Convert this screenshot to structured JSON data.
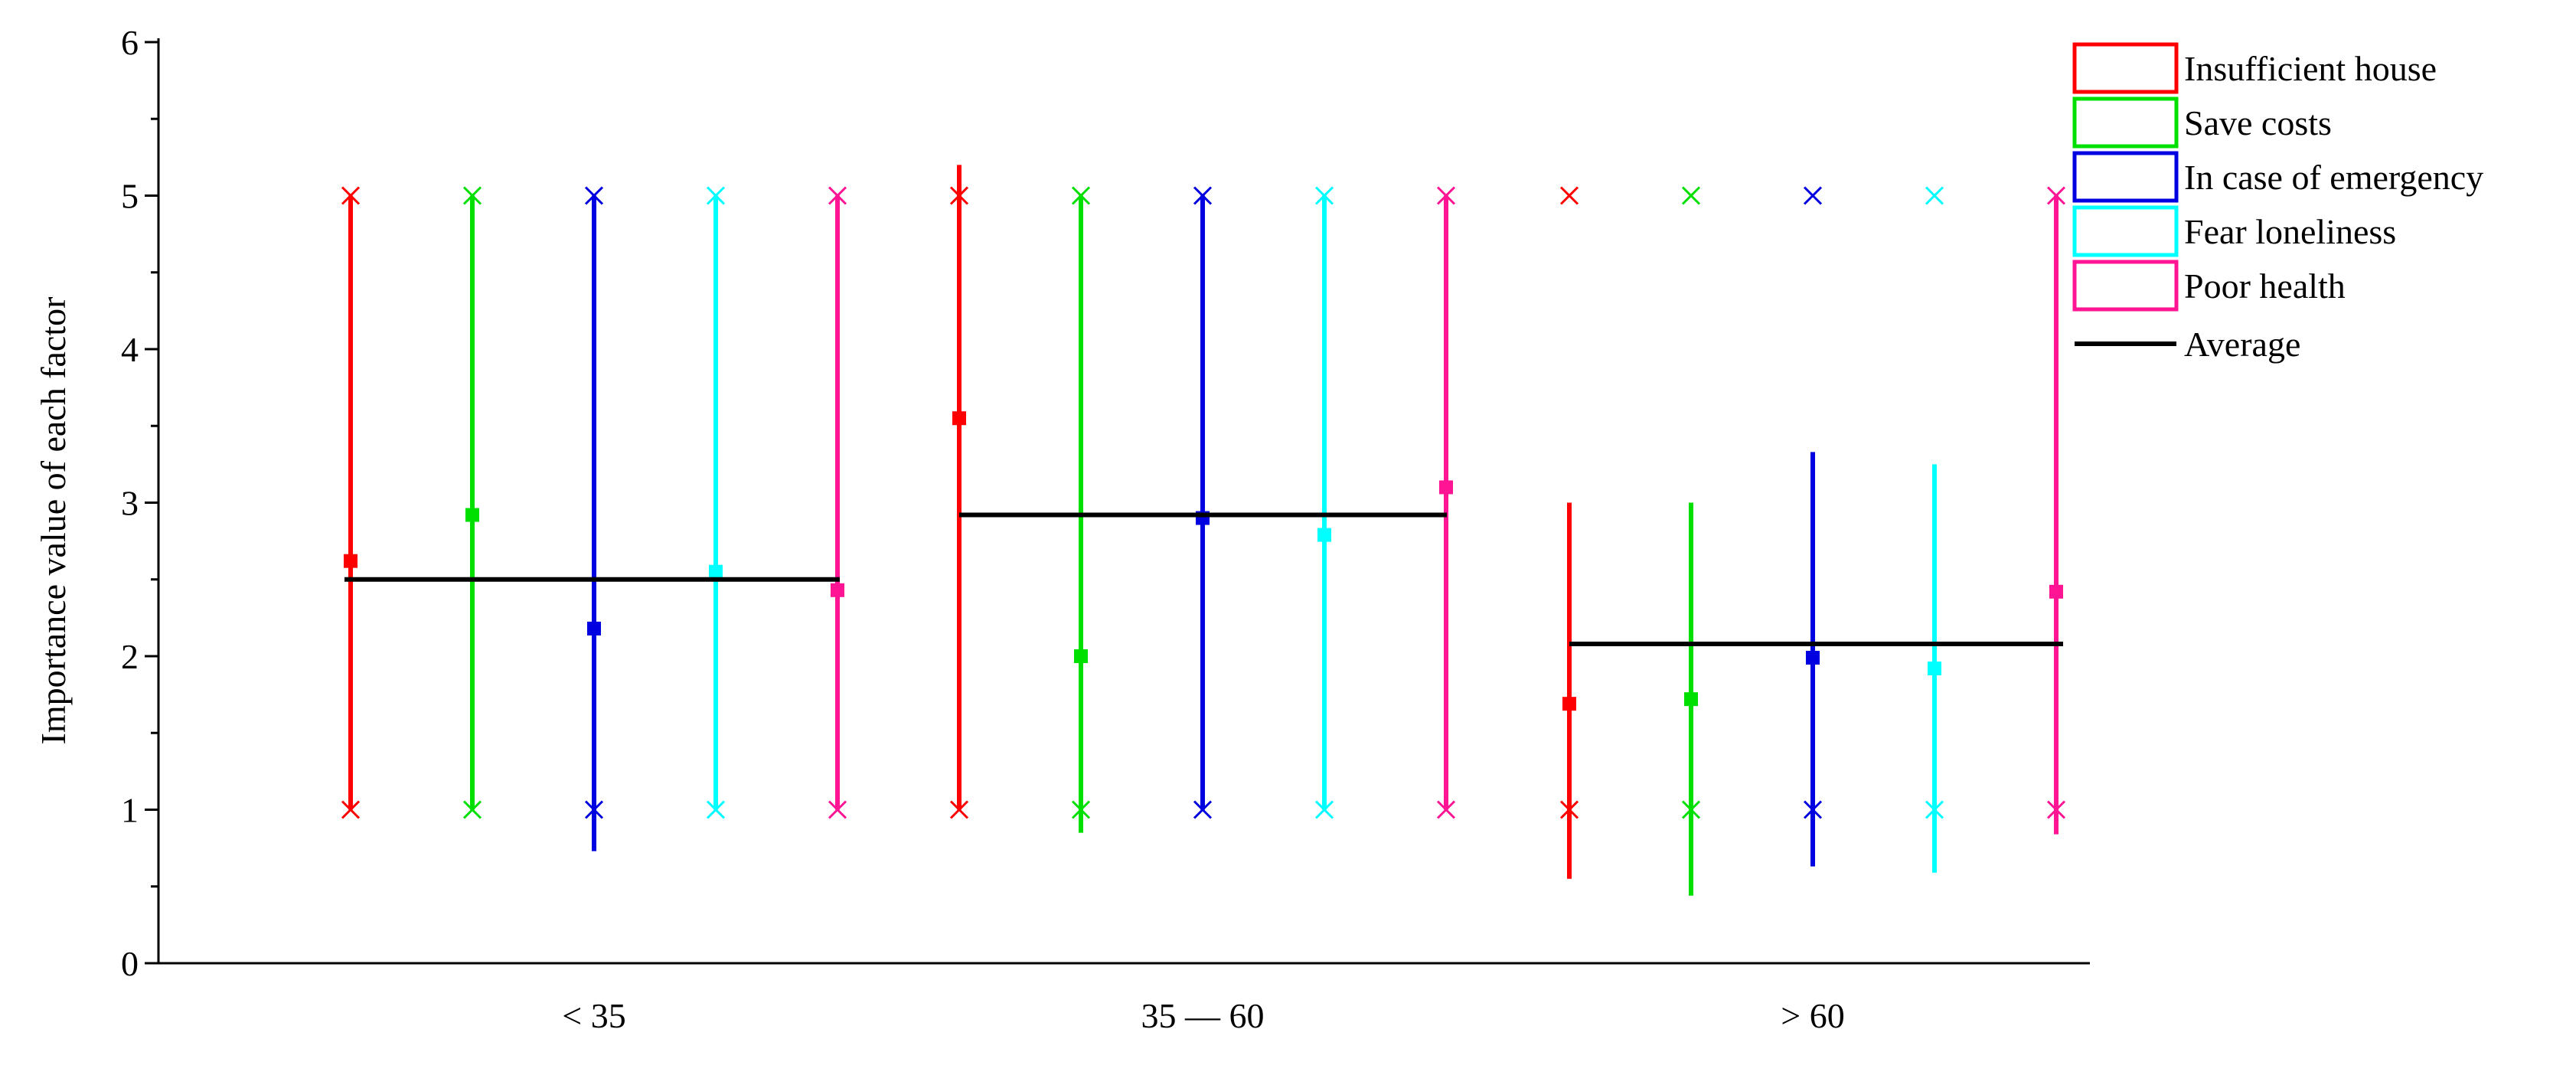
{
  "chart_data": {
    "type": "errorbar",
    "ylabel": "Importance value of each factor",
    "xlabel": "",
    "ylim": [
      0,
      6
    ],
    "yticks": [
      "0",
      "1",
      "2",
      "3",
      "4",
      "5",
      "6"
    ],
    "categories": [
      "<  35",
      "35 — 60",
      ">  60"
    ],
    "series": [
      {
        "name": "Insufficient house",
        "color": "#ff0000",
        "mean": [
          2.62,
          3.55,
          1.69
        ],
        "bar_low": [
          1.0,
          1.0,
          0.55
        ],
        "bar_high": [
          5.0,
          5.2,
          3.0
        ],
        "min": [
          1,
          1,
          1
        ],
        "max": [
          5,
          5,
          5
        ]
      },
      {
        "name": "Save costs",
        "color": "#00e000",
        "mean": [
          2.92,
          2.0,
          1.72
        ],
        "bar_low": [
          1.0,
          0.85,
          0.44
        ],
        "bar_high": [
          5.0,
          5.0,
          3.0
        ],
        "min": [
          1,
          1,
          1
        ],
        "max": [
          5,
          5,
          5
        ]
      },
      {
        "name": "In case of emergency",
        "color": "#0000e0",
        "mean": [
          2.18,
          2.9,
          1.99
        ],
        "bar_low": [
          0.73,
          1.0,
          0.63
        ],
        "bar_high": [
          5.0,
          5.0,
          3.33
        ],
        "min": [
          1,
          1,
          1
        ],
        "max": [
          5,
          5,
          5
        ]
      },
      {
        "name": "Fear loneliness",
        "color": "#00ffff",
        "mean": [
          2.55,
          2.79,
          1.92
        ],
        "bar_low": [
          1.0,
          1.0,
          0.59
        ],
        "bar_high": [
          5.0,
          5.0,
          3.25
        ],
        "min": [
          1,
          1,
          1
        ],
        "max": [
          5,
          5,
          5
        ]
      },
      {
        "name": "Poor health",
        "color": "#ff1493",
        "mean": [
          2.43,
          3.1,
          2.42
        ],
        "bar_low": [
          1.0,
          1.0,
          0.84
        ],
        "bar_high": [
          5.0,
          5.0,
          5.0
        ],
        "min": [
          1,
          1,
          1
        ],
        "max": [
          5,
          5,
          5
        ]
      }
    ],
    "average": {
      "name": "Average",
      "color": "#000000",
      "values": [
        2.5,
        2.92,
        2.08
      ]
    },
    "legend_position": "top-right",
    "grid": false
  }
}
